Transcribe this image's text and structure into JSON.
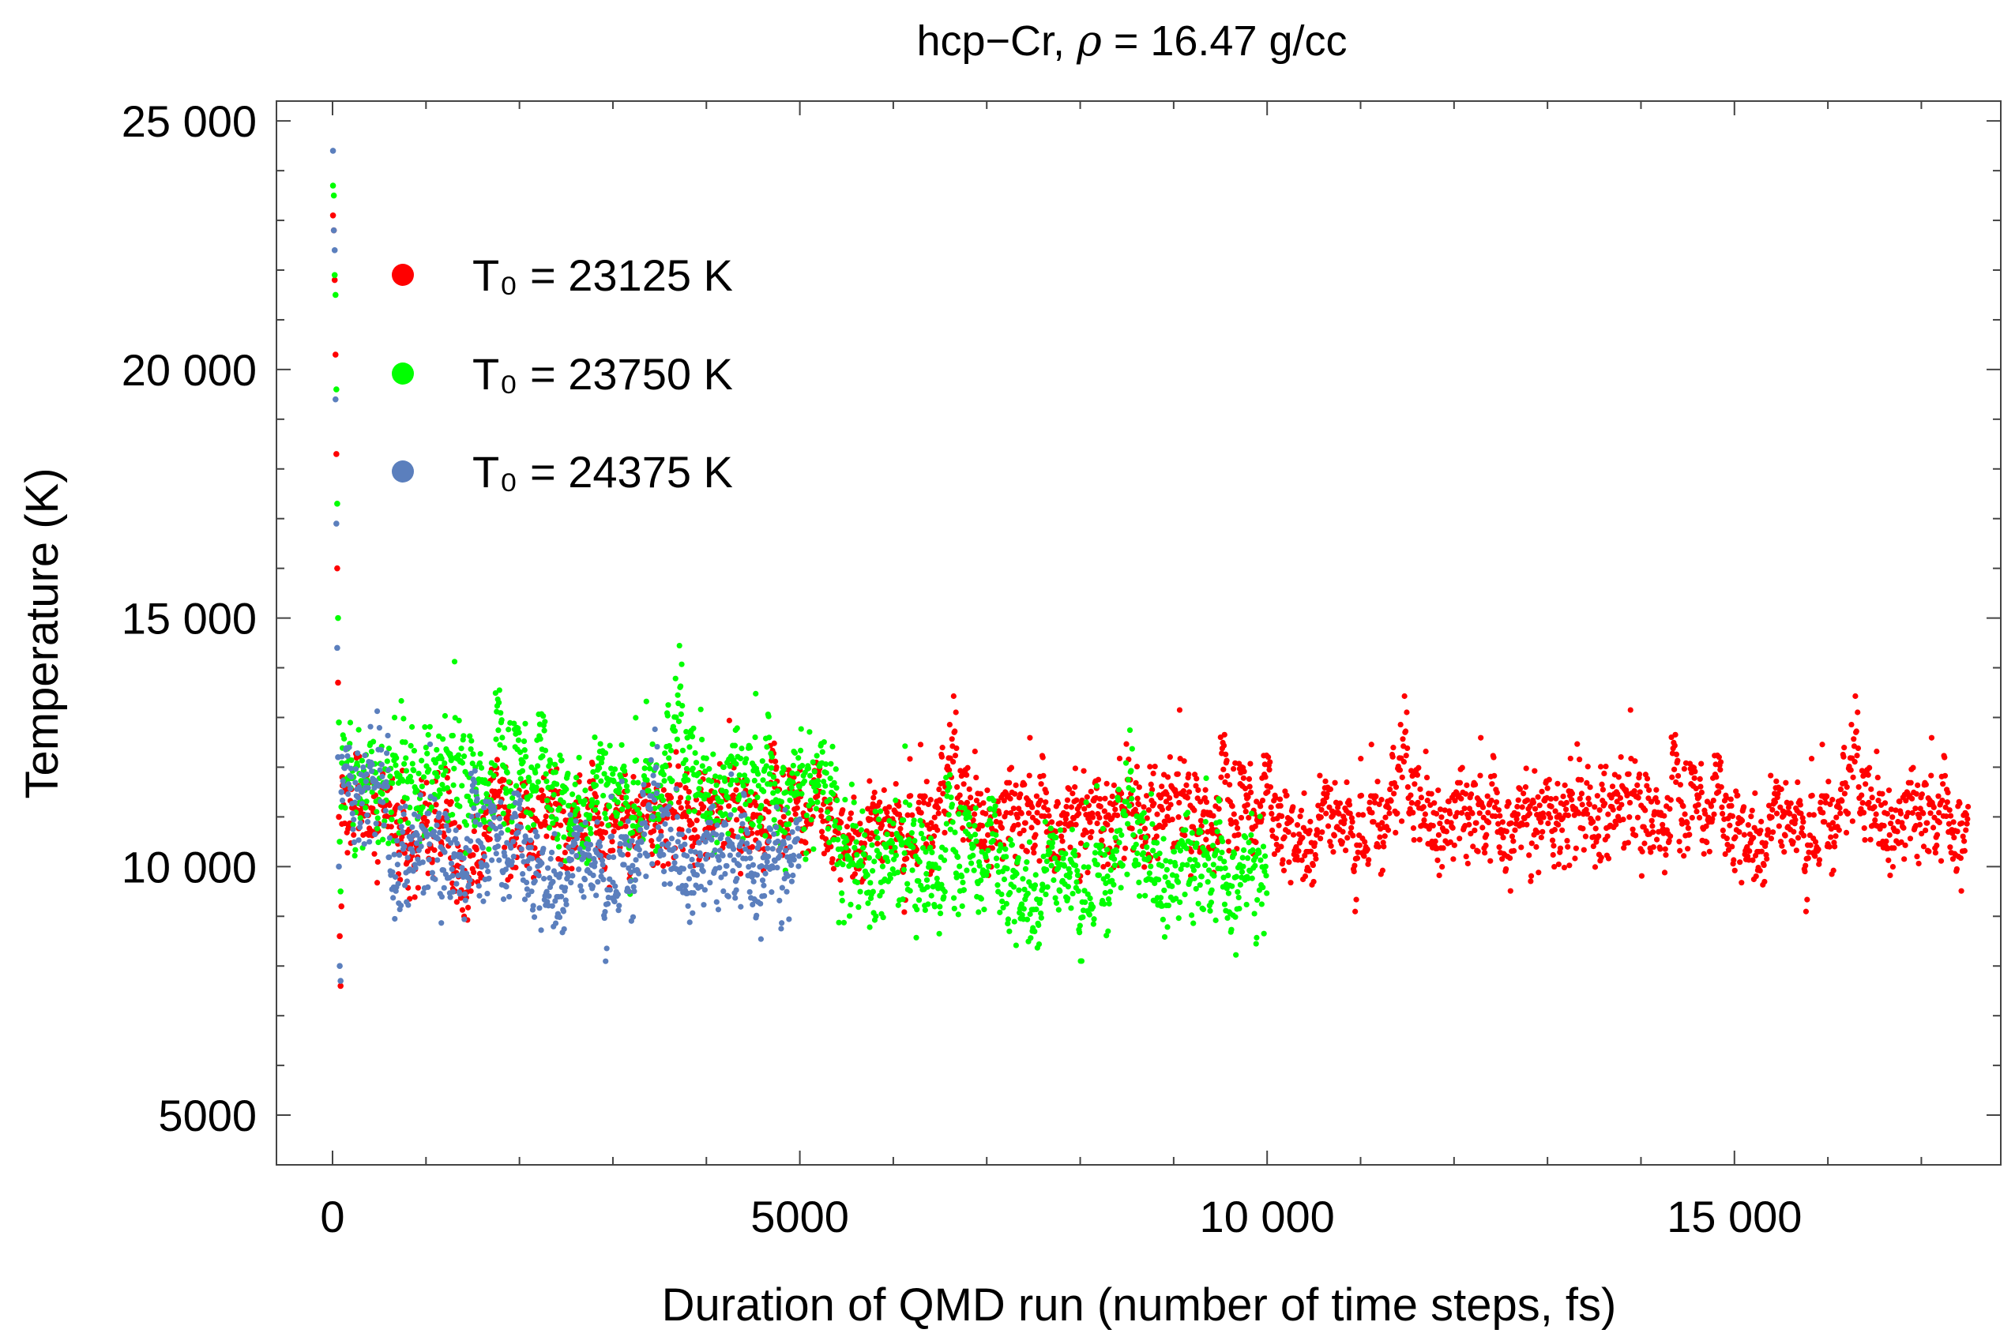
{
  "chart_data": {
    "type": "scatter",
    "title_prefix": "hcp−Cr, ",
    "title_symbol": "ρ",
    "title_suffix": " = 16.47 g/cc",
    "title": "hcp−Cr, ρ = 16.47 g/cc",
    "xlabel": "Duration of QMD run (number of time steps, fs)",
    "ylabel": "Temperature (K)",
    "xlim": [
      -600,
      17850
    ],
    "ylim": [
      4000,
      25400
    ],
    "xticks": [
      0,
      5000,
      10000,
      15000
    ],
    "xtick_labels": [
      "0",
      "5000",
      "10 000",
      "15 000"
    ],
    "yticks": [
      5000,
      10000,
      15000,
      20000,
      25000
    ],
    "ytick_labels": [
      "5000",
      "10 000",
      "15 000",
      "20 000",
      "25 000"
    ],
    "x_minor_step": 1000,
    "y_minor_step": 1000,
    "grid": false,
    "legend_position": "upper-left",
    "series": [
      {
        "name": "T₀ = 23125 K",
        "color": "#ff0000",
        "x_range": [
          0,
          17500
        ],
        "initial_values": [
          23100,
          22800,
          21800,
          20300,
          18300,
          16000,
          13700,
          11000,
          8600,
          7600,
          9200,
          11800
        ],
        "segments": [
          {
            "x_start": 100,
            "x_end": 5800,
            "mean": 11000,
            "spread": 1200
          },
          {
            "x_start": 5800,
            "x_end": 17500,
            "mean": 11050,
            "spread": 1300
          }
        ],
        "y_min": 7600,
        "y_max": 23100
      },
      {
        "name": "T₀ = 23750 K",
        "color": "#00ff00",
        "x_range": [
          0,
          10000
        ],
        "initial_values": [
          23700,
          23500,
          21900,
          21500,
          19600,
          17300,
          15000,
          12900,
          10500,
          9500,
          11200
        ],
        "segments": [
          {
            "x_start": 100,
            "x_end": 5400,
            "mean": 11700,
            "spread": 1500
          },
          {
            "x_start": 5400,
            "x_end": 10000,
            "mean": 10000,
            "spread": 1500
          }
        ],
        "y_min": 8100,
        "y_max": 23700
      },
      {
        "name": "T₀ = 24375 K",
        "color": "#5b7fbd",
        "x_range": [
          0,
          5000
        ],
        "initial_values": [
          24400,
          22800,
          22400,
          19400,
          16900,
          14400,
          12200,
          10000,
          8000,
          7700,
          11500
        ],
        "segments": [
          {
            "x_start": 100,
            "x_end": 600,
            "mean": 11600,
            "spread": 1400
          },
          {
            "x_start": 600,
            "x_end": 5000,
            "mean": 10200,
            "spread": 1400
          }
        ],
        "y_min": 7700,
        "y_max": 24400
      }
    ]
  }
}
